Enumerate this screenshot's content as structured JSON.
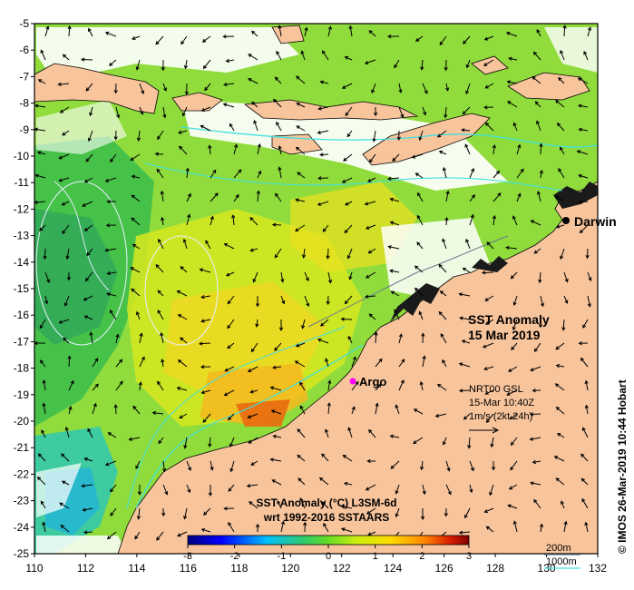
{
  "map": {
    "title_line1": "SST Anomaly",
    "title_line2": "15 Mar 2019",
    "lat_ticks": [
      "-5",
      "-6",
      "-7",
      "-8",
      "-9",
      "-10",
      "-11",
      "-12",
      "-13",
      "-14",
      "-15",
      "-16",
      "-17",
      "-18",
      "-19",
      "-20",
      "-21",
      "-22",
      "-23",
      "-24",
      "-25"
    ],
    "lon_ticks": [
      "110",
      "112",
      "114",
      "116",
      "118",
      "120",
      "122",
      "124",
      "126",
      "128",
      "130",
      "132"
    ],
    "lon_range": [
      110,
      132
    ],
    "lat_range": [
      -25,
      -5
    ],
    "places": {
      "darwin": "Darwin",
      "argo": "Argo"
    },
    "current_info": {
      "line1": "NRT00 GSL",
      "line2": "15-Mar 10:40Z",
      "line3": "1m/s (2kt 24h)"
    },
    "colorbar": {
      "title_line1": "SST Anomaly (°C) L3SM-6d",
      "title_line2": "wrt 1992-2016 SSTAARS",
      "ticks": [
        "-3",
        "-2",
        "-1",
        "0",
        "1",
        "2",
        "3"
      ],
      "range": [
        -3,
        3
      ]
    },
    "bathymetry_legend": {
      "depth1": "200m",
      "depth2": "1000m",
      "color1": "#6a7a8a",
      "color2": "#40e0e0"
    },
    "credit": "© IMOS 26-Mar-2019 10:44 Hobart",
    "colors": {
      "land": "#f8c49c",
      "argo_marker": "#ff00ff",
      "darwin_marker": "#000000"
    }
  }
}
